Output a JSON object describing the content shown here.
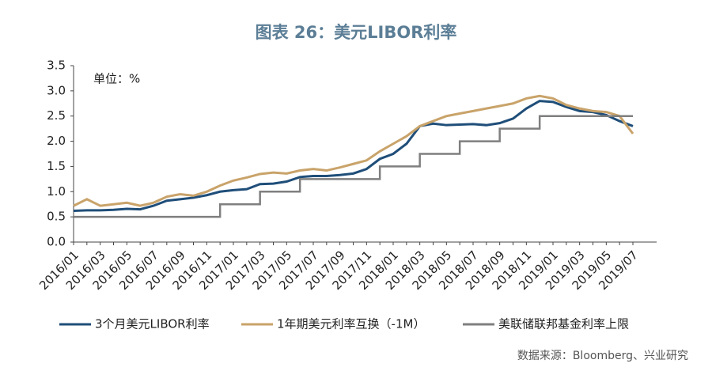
{
  "chart_data": {
    "type": "line",
    "title": "图表 26：美元LIBOR利率",
    "annotation": "单位：%",
    "source": "数据来源：Bloomberg、兴业研究",
    "categories": [
      "2016/01",
      null,
      "2016/03",
      null,
      "2016/05",
      null,
      "2016/07",
      null,
      "2016/09",
      null,
      "2016/11",
      null,
      "2017/01",
      null,
      "2017/03",
      null,
      "2017/05",
      null,
      "2017/07",
      null,
      "2017/09",
      null,
      "2017/11",
      null,
      "2018/01",
      null,
      "2018/03",
      null,
      "2018/05",
      null,
      "2018/07",
      null,
      "2018/09",
      null,
      "2018/11",
      null,
      "2019/01",
      null,
      "2019/03",
      null,
      "2019/05",
      null,
      "2019/07"
    ],
    "series": [
      {
        "name": "3个月美元LIBOR利率",
        "color": "#1f4e79",
        "values": [
          0.62,
          0.63,
          0.63,
          0.64,
          0.66,
          0.65,
          0.72,
          0.82,
          0.85,
          0.88,
          0.93,
          1.0,
          1.03,
          1.05,
          1.15,
          1.16,
          1.2,
          1.29,
          1.31,
          1.31,
          1.33,
          1.36,
          1.45,
          1.65,
          1.75,
          1.95,
          2.3,
          2.35,
          2.32,
          2.33,
          2.34,
          2.32,
          2.36,
          2.45,
          2.65,
          2.8,
          2.78,
          2.68,
          2.6,
          2.58,
          2.52,
          2.4,
          2.3
        ]
      },
      {
        "name": "1年期美元利率互换（-1M）",
        "color": "#c9a36a",
        "values": [
          0.72,
          0.85,
          0.72,
          0.75,
          0.78,
          0.72,
          0.78,
          0.9,
          0.95,
          0.92,
          1.0,
          1.12,
          1.22,
          1.28,
          1.35,
          1.38,
          1.36,
          1.42,
          1.45,
          1.42,
          1.48,
          1.55,
          1.62,
          1.8,
          1.95,
          2.1,
          2.3,
          2.4,
          2.5,
          2.55,
          2.6,
          2.65,
          2.7,
          2.75,
          2.85,
          2.9,
          2.85,
          2.72,
          2.65,
          2.6,
          2.58,
          2.5,
          2.15
        ]
      },
      {
        "name": "美联储联邦基金利率上限",
        "color": "#7f7f7f",
        "step": true,
        "values": [
          0.5,
          0.5,
          0.5,
          0.5,
          0.5,
          0.5,
          0.5,
          0.5,
          0.5,
          0.5,
          0.5,
          0.75,
          0.75,
          0.75,
          1.0,
          1.0,
          1.0,
          1.25,
          1.25,
          1.25,
          1.25,
          1.25,
          1.25,
          1.5,
          1.5,
          1.5,
          1.75,
          1.75,
          1.75,
          2.0,
          2.0,
          2.0,
          2.25,
          2.25,
          2.25,
          2.5,
          2.5,
          2.5,
          2.5,
          2.5,
          2.5,
          2.5,
          2.5
        ]
      }
    ],
    "ylim": [
      0,
      3.5
    ],
    "yticks": [
      {
        "value": 0,
        "label": "0.0"
      },
      0.5,
      {
        "value": 1,
        "label": "1.0"
      },
      1.5,
      {
        "value": 2,
        "label": "2.0"
      },
      2.5,
      {
        "value": 3,
        "label": "3.0"
      },
      3.5
    ],
    "legend": "bottom"
  }
}
